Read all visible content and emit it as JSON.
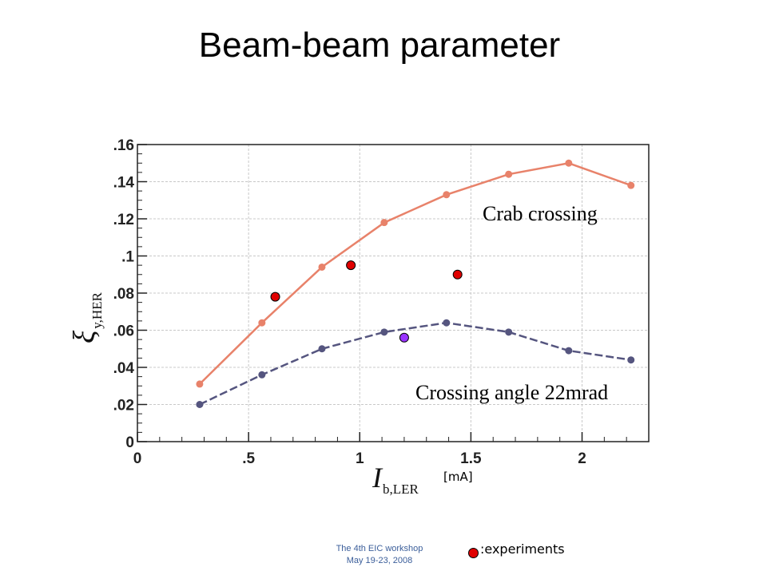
{
  "slide": {
    "title": "Beam-beam parameter",
    "footer_line1": "The 4th EIC workshop",
    "footer_line2": "May 19-23, 2008",
    "legend_label": ":experiments",
    "legend_color": "#e00000"
  },
  "chart_data": {
    "type": "line",
    "title": "",
    "xlabel": "I",
    "xlabel_sub": "b,LER",
    "xunit": "[mA]",
    "ylabel": "ξ",
    "ylabel_sub": "y,HER",
    "xlim": [
      0,
      2.3
    ],
    "ylim": [
      0,
      0.16
    ],
    "x_ticks": [
      0,
      0.5,
      1,
      1.5,
      2
    ],
    "x_tick_labels": [
      "0",
      ".5",
      "1",
      "1.5",
      "2"
    ],
    "y_ticks": [
      0,
      0.02,
      0.04,
      0.06,
      0.08,
      0.1,
      0.12,
      0.14,
      0.16
    ],
    "y_tick_labels": [
      "0",
      ".02",
      ".04",
      ".06",
      ".08",
      ".1",
      ".12",
      ".14",
      ".16"
    ],
    "grid": true,
    "series": [
      {
        "label": "Crab crossing",
        "color": "#e8826a",
        "style": "solid",
        "x": [
          0.28,
          0.56,
          0.83,
          1.11,
          1.39,
          1.67,
          1.94,
          2.22
        ],
        "y": [
          0.031,
          0.064,
          0.094,
          0.118,
          0.133,
          0.144,
          0.15,
          0.138
        ]
      },
      {
        "label": "Crossing angle 22mrad",
        "color": "#55557f",
        "style": "dashed",
        "x": [
          0.28,
          0.56,
          0.83,
          1.11,
          1.39,
          1.67,
          1.94,
          2.22
        ],
        "y": [
          0.02,
          0.036,
          0.05,
          0.059,
          0.064,
          0.059,
          0.049,
          0.044
        ]
      }
    ],
    "experiments": [
      {
        "x": 0.62,
        "y": 0.078,
        "color": "#e00000"
      },
      {
        "x": 0.96,
        "y": 0.095,
        "color": "#e00000"
      },
      {
        "x": 1.44,
        "y": 0.09,
        "color": "#e00000"
      },
      {
        "x": 1.2,
        "y": 0.056,
        "color": "#9933ff"
      }
    ]
  }
}
